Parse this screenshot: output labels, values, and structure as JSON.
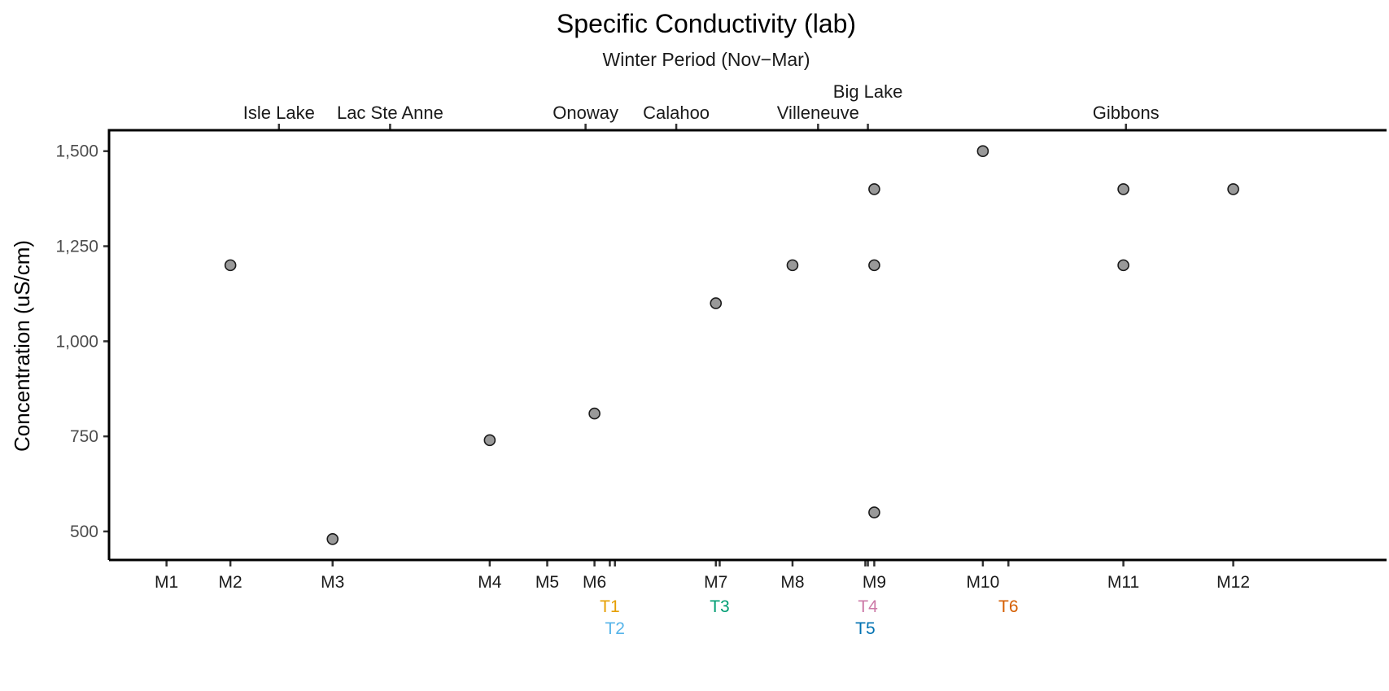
{
  "chart_data": {
    "type": "scatter",
    "title": "Specific Conductivity (lab)",
    "subtitle": "Winter Period (Nov−Mar)",
    "ylabel": "Concentration (uS/cm)",
    "xlabel": "",
    "ylim": [
      425,
      1555
    ],
    "y_ticks": [
      500,
      750,
      1000,
      1250,
      1500
    ],
    "y_tick_labels": [
      "500",
      "750",
      "1,000",
      "1,250",
      "1,500"
    ],
    "xlim": [
      0,
      100
    ],
    "grid": false,
    "legend": "none",
    "point_color": "#999999",
    "main_stations": [
      {
        "label": "M1",
        "x": 4.5
      },
      {
        "label": "M2",
        "x": 9.5
      },
      {
        "label": "M3",
        "x": 17.5
      },
      {
        "label": "M4",
        "x": 29.8
      },
      {
        "label": "M5",
        "x": 34.3
      },
      {
        "label": "M6",
        "x": 38.0
      },
      {
        "label": "M7",
        "x": 47.5
      },
      {
        "label": "M8",
        "x": 53.5
      },
      {
        "label": "M9",
        "x": 59.9
      },
      {
        "label": "M10",
        "x": 68.4
      },
      {
        "label": "M11",
        "x": 79.4
      },
      {
        "label": "M12",
        "x": 88.0
      }
    ],
    "tributaries": [
      {
        "label": "T1",
        "x": 39.2,
        "color": "#E69F00",
        "row": 1
      },
      {
        "label": "T2",
        "x": 39.6,
        "color": "#56B4E9",
        "row": 2
      },
      {
        "label": "T3",
        "x": 47.8,
        "color": "#009E73",
        "row": 1
      },
      {
        "label": "T4",
        "x": 59.4,
        "color": "#CC79A7",
        "row": 1
      },
      {
        "label": "T5",
        "x": 59.2,
        "color": "#0072B2",
        "row": 2
      },
      {
        "label": "T6",
        "x": 70.4,
        "color": "#D55E00",
        "row": 1
      }
    ],
    "communities": [
      {
        "label": "Isle Lake",
        "x": 13.3,
        "row": 1
      },
      {
        "label": "Lac Ste Anne",
        "x": 22.0,
        "row": 1
      },
      {
        "label": "Onoway",
        "x": 37.3,
        "row": 1
      },
      {
        "label": "Calahoo",
        "x": 44.4,
        "row": 1
      },
      {
        "label": "Villeneuve",
        "x": 55.5,
        "row": 1
      },
      {
        "label": "Big Lake",
        "x": 59.4,
        "row": 2
      },
      {
        "label": "Gibbons",
        "x": 79.6,
        "row": 1
      }
    ],
    "series": [
      {
        "x": [
          9.5,
          17.5,
          29.8,
          38.0,
          47.5,
          53.5,
          59.9,
          59.9,
          59.9,
          68.4,
          79.4,
          79.4,
          88.0
        ],
        "y": [
          1200,
          480,
          740,
          810,
          1100,
          1200,
          1400,
          1200,
          550,
          1500,
          1400,
          1200,
          1400
        ],
        "station": [
          "M2",
          "M3",
          "M4",
          "M6",
          "M7",
          "M8",
          "M9",
          "M9",
          "M9",
          "M10",
          "M11",
          "M11",
          "M12"
        ]
      }
    ]
  }
}
